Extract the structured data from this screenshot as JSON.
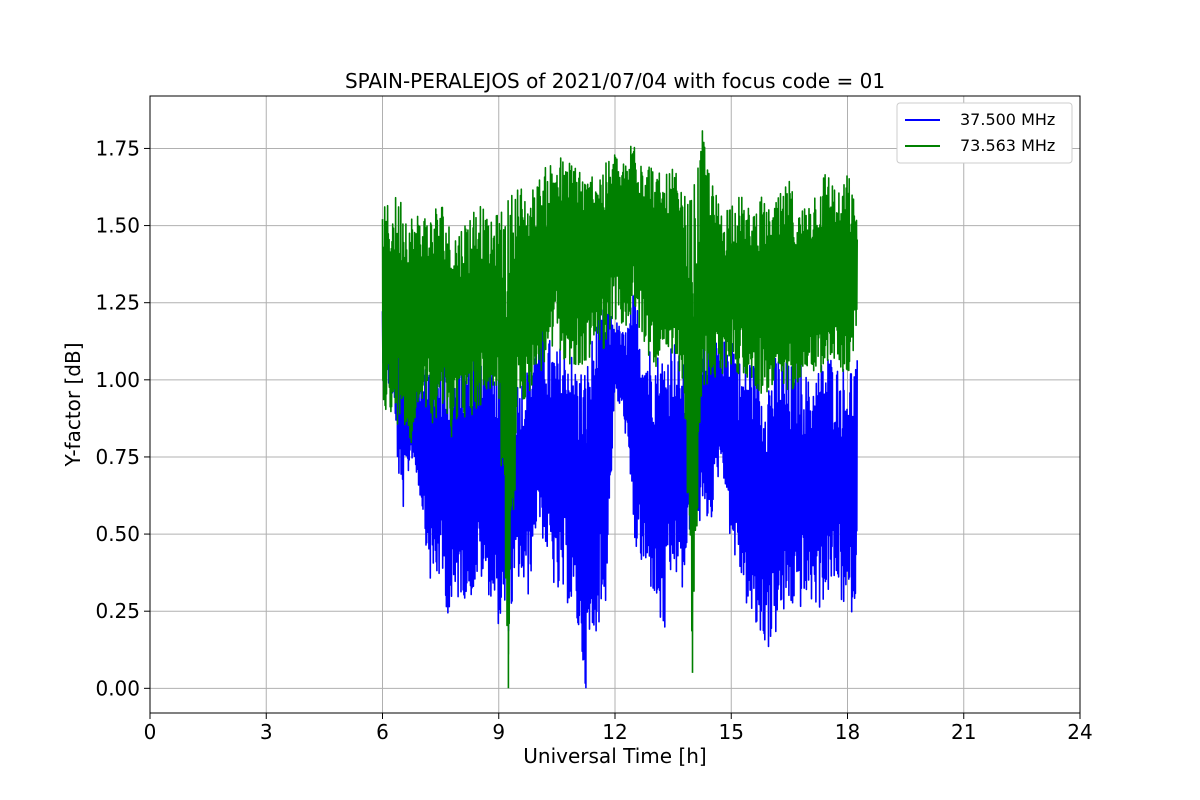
{
  "chart_data": {
    "type": "line",
    "title": "SPAIN-PERALEJOS of 2021/07/04 with focus code = 01",
    "xlabel": "Universal Time [h]",
    "ylabel": "Y-factor [dB]",
    "xlim": [
      0,
      24
    ],
    "ylim": [
      -0.08,
      1.92
    ],
    "xticks": [
      0,
      3,
      6,
      9,
      12,
      15,
      18,
      21,
      24
    ],
    "yticks": [
      0.0,
      0.25,
      0.5,
      0.75,
      1.0,
      1.25,
      1.5,
      1.75
    ],
    "xtick_labels": [
      "0",
      "3",
      "6",
      "9",
      "12",
      "15",
      "18",
      "21",
      "24"
    ],
    "ytick_labels": [
      "0.00",
      "0.25",
      "0.50",
      "0.75",
      "1.00",
      "1.25",
      "1.50",
      "1.75"
    ],
    "grid": true,
    "legend_position": "top-right",
    "series": [
      {
        "name": "37.500 MHz",
        "color": "#0000ff",
        "x": [
          6.0,
          6.25,
          6.5,
          6.75,
          7.0,
          7.25,
          7.5,
          7.75,
          8.0,
          8.25,
          8.5,
          8.75,
          9.0,
          9.25,
          9.5,
          9.75,
          10.0,
          10.25,
          10.5,
          10.75,
          11.0,
          11.25,
          11.5,
          11.75,
          12.0,
          12.25,
          12.5,
          12.75,
          13.0,
          13.25,
          13.5,
          13.75,
          14.0,
          14.25,
          14.5,
          14.75,
          15.0,
          15.25,
          15.5,
          15.75,
          16.0,
          16.25,
          16.5,
          16.75,
          17.0,
          17.25,
          17.5,
          17.75,
          18.0,
          18.25
        ],
        "low": [
          1.0,
          0.95,
          0.55,
          0.75,
          0.6,
          0.32,
          0.35,
          0.2,
          0.3,
          0.28,
          0.35,
          0.3,
          0.2,
          0.18,
          0.35,
          0.28,
          0.55,
          0.42,
          0.28,
          0.28,
          0.2,
          0.0,
          0.18,
          0.25,
          0.95,
          0.85,
          0.45,
          0.35,
          0.3,
          0.13,
          0.38,
          0.3,
          0.55,
          0.52,
          0.55,
          0.75,
          0.45,
          0.35,
          0.2,
          0.15,
          0.12,
          0.2,
          0.25,
          0.25,
          0.28,
          0.25,
          0.3,
          0.32,
          0.2,
          0.3
        ],
        "high": [
          1.25,
          1.3,
          1.15,
          1.1,
          1.05,
          1.1,
          1.1,
          1.05,
          1.05,
          1.1,
          1.15,
          1.1,
          1.05,
          1.15,
          1.0,
          1.05,
          1.2,
          1.15,
          1.1,
          1.15,
          1.05,
          1.05,
          1.2,
          1.25,
          1.2,
          1.15,
          1.3,
          1.15,
          1.1,
          1.1,
          1.15,
          1.05,
          1.1,
          1.2,
          1.15,
          1.1,
          1.2,
          1.05,
          1.1,
          1.0,
          1.05,
          1.1,
          1.05,
          1.1,
          1.0,
          1.05,
          1.1,
          1.05,
          1.05,
          1.08
        ]
      },
      {
        "name": "73.563 MHz",
        "color": "#008000",
        "x": [
          6.0,
          6.25,
          6.5,
          6.75,
          7.0,
          7.25,
          7.5,
          7.75,
          8.0,
          8.25,
          8.5,
          8.75,
          9.0,
          9.25,
          9.5,
          9.75,
          10.0,
          10.25,
          10.5,
          10.75,
          11.0,
          11.25,
          11.5,
          11.75,
          12.0,
          12.25,
          12.5,
          12.75,
          13.0,
          13.25,
          13.5,
          13.75,
          14.0,
          14.25,
          14.5,
          14.75,
          15.0,
          15.25,
          15.5,
          15.75,
          16.0,
          16.25,
          16.5,
          16.75,
          17.0,
          17.25,
          17.5,
          17.75,
          18.0,
          18.25
        ],
        "low": [
          0.95,
          0.8,
          0.9,
          0.75,
          0.95,
          0.85,
          0.9,
          0.8,
          0.9,
          0.85,
          0.9,
          0.95,
          0.95,
          0.0,
          0.9,
          0.95,
          1.0,
          1.05,
          1.1,
          1.05,
          1.0,
          1.05,
          1.1,
          1.1,
          1.2,
          1.15,
          1.2,
          1.1,
          1.05,
          1.0,
          1.05,
          1.0,
          0.05,
          0.95,
          1.0,
          1.0,
          1.05,
          1.0,
          1.0,
          0.95,
          0.95,
          0.95,
          0.95,
          1.0,
          1.05,
          1.0,
          1.05,
          1.05,
          1.0,
          1.15
        ],
        "high": [
          1.55,
          1.6,
          1.6,
          1.55,
          1.55,
          1.55,
          1.6,
          1.5,
          1.5,
          1.55,
          1.6,
          1.5,
          1.55,
          1.6,
          1.65,
          1.6,
          1.65,
          1.7,
          1.75,
          1.7,
          1.75,
          1.65,
          1.7,
          1.7,
          1.75,
          1.7,
          1.83,
          1.75,
          1.7,
          1.65,
          1.7,
          1.6,
          1.6,
          1.81,
          1.65,
          1.55,
          1.6,
          1.6,
          1.55,
          1.6,
          1.55,
          1.6,
          1.65,
          1.55,
          1.6,
          1.65,
          1.7,
          1.6,
          1.68,
          1.55
        ]
      }
    ]
  }
}
